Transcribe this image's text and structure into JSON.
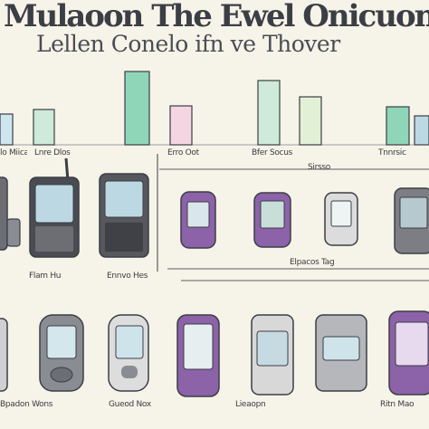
{
  "header": {
    "title": "Mulaoon The Ewel Onicuon",
    "subtitle": "Lellen Conelo ifn ve Thover"
  },
  "labels": {
    "row1": [
      "lo Miicar",
      "Lnre Dlos",
      "Erro Oot",
      "Bfer Socus",
      "Sirsso",
      "Tnnrsic"
    ],
    "row2": [
      "Flam Hu",
      "Ennvo Hes",
      "Elpacos Tag"
    ],
    "row3": [
      "Bpadon Wons",
      "Gueod Nox",
      "Lieaopn",
      "Ritn Mao"
    ]
  },
  "colors": {
    "bar_teal": "#8fd6b8",
    "bar_pink": "#f4d6e2",
    "bar_blue": "#cfe6ee",
    "bar_mint": "#cdebd8",
    "device_purple": "#8c62a8",
    "device_gray": "#8a8c93",
    "screen_blue": "#bcd9e3",
    "outline": "#3b3e45"
  }
}
